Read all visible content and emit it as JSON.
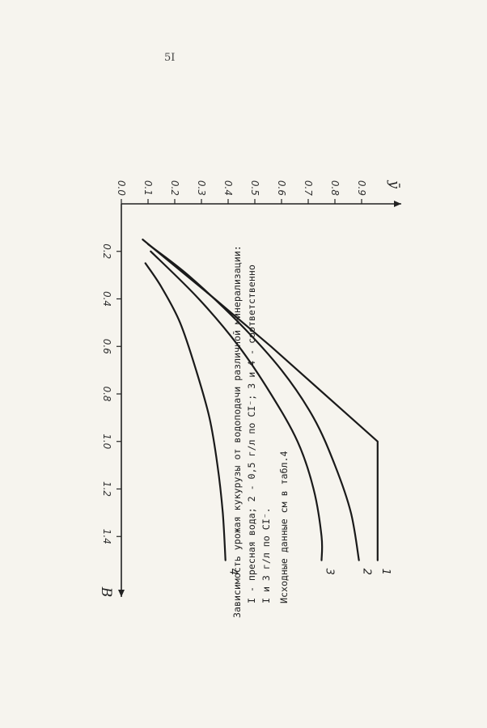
{
  "page": {
    "number": "5I"
  },
  "chart_data": {
    "type": "line",
    "xlabel": "B",
    "ylabel": "ȳ",
    "xlim": [
      0,
      1.6
    ],
    "ylim": [
      0,
      1.0
    ],
    "x_ticks": [
      0.2,
      0.4,
      0.6,
      0.8,
      1.0,
      1.2,
      1.4
    ],
    "x_tick_labels": [
      "0.2",
      "0.4",
      "0.6",
      "0.8",
      "1.0",
      "1.2",
      "1.4"
    ],
    "y_ticks": [
      0.0,
      0.1,
      0.2,
      0.3,
      0.4,
      0.5,
      0.6,
      0.7,
      0.8,
      0.9
    ],
    "y_tick_labels": [
      "0.0",
      "0.1",
      "0.2",
      "0.3",
      "0.4",
      "0.5",
      "0.6",
      "0.7",
      "0.8",
      "0.9"
    ],
    "series": [
      {
        "name": "1",
        "x": [
          0.15,
          0.4,
          0.6,
          0.8,
          1.0,
          1.2,
          1.4,
          1.5
        ],
        "y": [
          0.08,
          0.35,
          0.56,
          0.76,
          0.96,
          0.96,
          0.96,
          0.96
        ]
      },
      {
        "name": "2",
        "x": [
          0.17,
          0.3,
          0.5,
          0.7,
          0.9,
          1.1,
          1.3,
          1.5
        ],
        "y": [
          0.1,
          0.25,
          0.44,
          0.6,
          0.72,
          0.8,
          0.86,
          0.89
        ]
      },
      {
        "name": "3",
        "x": [
          0.2,
          0.4,
          0.6,
          0.8,
          1.0,
          1.2,
          1.4,
          1.5
        ],
        "y": [
          0.11,
          0.29,
          0.44,
          0.56,
          0.66,
          0.72,
          0.75,
          0.75
        ]
      },
      {
        "name": "4",
        "x": [
          0.25,
          0.35,
          0.5,
          0.7,
          0.9,
          1.1,
          1.3,
          1.5
        ],
        "y": [
          0.09,
          0.15,
          0.22,
          0.28,
          0.33,
          0.36,
          0.38,
          0.39
        ]
      }
    ]
  },
  "caption": {
    "line1": "Зависимость урожая кукурузы от водоподачи различной минерализации:",
    "line2": "I - пресная вода; 2 - 0,5 г/л по CI⁻; 3 и 4 - соответственно",
    "line3": "I и 3 г/л по CI⁻.",
    "line4": "Исходные данные см в табл.4"
  }
}
